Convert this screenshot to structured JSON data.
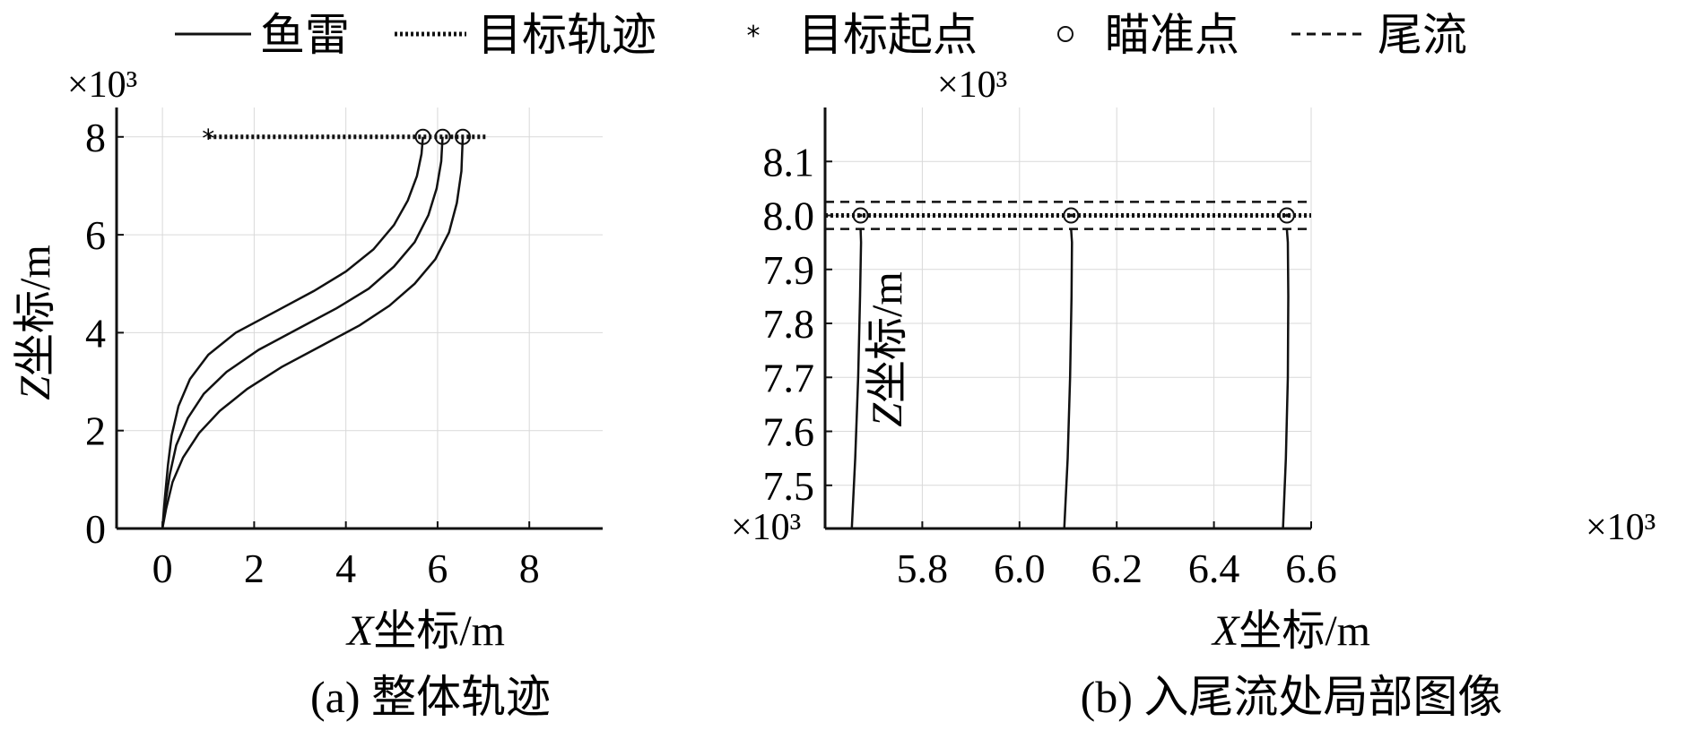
{
  "legend": {
    "torpedo": "鱼雷",
    "target_track": "目标轨迹",
    "target_start": "目标起点",
    "aim_point": "瞄准点",
    "wake": "尾流"
  },
  "chart_data": [
    {
      "type": "line",
      "caption": "(a) 整体轨迹",
      "xlabel_var": "X",
      "xlabel_unit": "坐标/m",
      "ylabel_var": "Z",
      "ylabel_unit": "坐标/m",
      "x_multiplier": "×10³",
      "y_multiplier": "×10³",
      "xlim": [
        -1,
        9.6
      ],
      "ylim": [
        0,
        8.6
      ],
      "xticks": [
        0,
        2,
        4,
        6,
        8
      ],
      "yticks": [
        0,
        2,
        4,
        6,
        8
      ],
      "grid": true,
      "series": [
        {
          "kind": "torpedo",
          "x": [
            0,
            0.05,
            0.12,
            0.2,
            0.35,
            0.6,
            1.0,
            1.6,
            2.5,
            3.3,
            4.0,
            4.6,
            5.05,
            5.35,
            5.55,
            5.65,
            5.68
          ],
          "y": [
            0,
            0.6,
            1.3,
            1.9,
            2.5,
            3.05,
            3.55,
            4.0,
            4.45,
            4.85,
            5.25,
            5.7,
            6.2,
            6.7,
            7.2,
            7.65,
            8.0
          ]
        },
        {
          "kind": "torpedo",
          "x": [
            0,
            0.06,
            0.16,
            0.3,
            0.55,
            0.9,
            1.4,
            2.1,
            3.0,
            3.8,
            4.5,
            5.05,
            5.5,
            5.8,
            5.98,
            6.08,
            6.11
          ],
          "y": [
            0,
            0.5,
            1.1,
            1.7,
            2.25,
            2.75,
            3.2,
            3.65,
            4.1,
            4.5,
            4.9,
            5.35,
            5.85,
            6.4,
            6.95,
            7.5,
            8.0
          ]
        },
        {
          "kind": "torpedo",
          "x": [
            0,
            0.08,
            0.22,
            0.45,
            0.8,
            1.25,
            1.85,
            2.6,
            3.5,
            4.3,
            4.95,
            5.5,
            5.95,
            6.25,
            6.42,
            6.52,
            6.55
          ],
          "y": [
            0,
            0.4,
            0.95,
            1.45,
            1.95,
            2.4,
            2.85,
            3.3,
            3.75,
            4.15,
            4.55,
            5.0,
            5.5,
            6.05,
            6.65,
            7.3,
            8.0
          ]
        },
        {
          "kind": "target_track",
          "x": [
            1.0,
            7.1
          ],
          "y": [
            8.0,
            8.0
          ]
        }
      ],
      "target_start": {
        "x": 1.0,
        "y": 8.0
      },
      "aim_points": [
        {
          "x": 5.68,
          "y": 8.0
        },
        {
          "x": 6.11,
          "y": 8.0
        },
        {
          "x": 6.55,
          "y": 8.0
        }
      ]
    },
    {
      "type": "line",
      "caption": "(b) 入尾流处局部图像",
      "xlabel_var": "X",
      "xlabel_unit": "坐标/m",
      "ylabel_var": "Z",
      "ylabel_unit": "坐标/m",
      "x_multiplier": "×10³",
      "y_multiplier": "×10³",
      "xlim": [
        5.6,
        6.6
      ],
      "ylim": [
        7.42,
        8.2
      ],
      "xticks": [
        5.8,
        6.0,
        6.2,
        6.4,
        6.6
      ],
      "xtick_labels": [
        "5.8",
        "6.0",
        "6.2",
        "6.4",
        "6.6"
      ],
      "yticks": [
        7.5,
        7.6,
        7.7,
        7.8,
        7.9,
        8.0,
        8.1
      ],
      "ytick_labels": [
        "7.5",
        "7.6",
        "7.7",
        "7.8",
        "7.9",
        "8.0",
        "8.1"
      ],
      "grid": true,
      "series": [
        {
          "kind": "torpedo",
          "x": [
            5.655,
            5.662,
            5.668,
            5.672,
            5.674,
            5.673
          ],
          "y": [
            7.42,
            7.55,
            7.7,
            7.85,
            7.95,
            7.975
          ]
        },
        {
          "kind": "torpedo",
          "x": [
            6.092,
            6.099,
            6.104,
            6.107,
            6.108,
            6.106
          ],
          "y": [
            7.42,
            7.55,
            7.7,
            7.85,
            7.95,
            7.975
          ]
        },
        {
          "kind": "torpedo",
          "x": [
            6.542,
            6.548,
            6.552,
            6.553,
            6.552,
            6.55
          ],
          "y": [
            7.42,
            7.55,
            7.7,
            7.85,
            7.95,
            7.975
          ]
        },
        {
          "kind": "target_track",
          "x": [
            5.6,
            6.6
          ],
          "y": [
            8.0,
            8.0
          ]
        },
        {
          "kind": "wake",
          "x": [
            5.6,
            6.6
          ],
          "y": [
            8.025,
            8.025
          ]
        },
        {
          "kind": "wake",
          "x": [
            5.6,
            6.6
          ],
          "y": [
            7.975,
            7.975
          ]
        }
      ],
      "aim_points": [
        {
          "x": 5.673,
          "y": 8.0
        },
        {
          "x": 6.106,
          "y": 8.0
        },
        {
          "x": 6.55,
          "y": 8.0
        }
      ]
    }
  ]
}
